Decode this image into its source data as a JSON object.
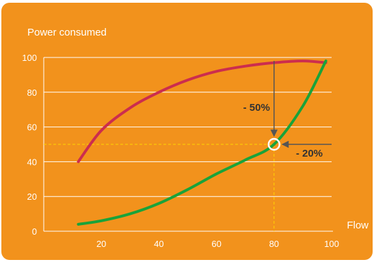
{
  "chart_data": {
    "type": "line",
    "title": "Power consumed",
    "xlabel": "Flow",
    "ylabel": "",
    "xlim": [
      0,
      100
    ],
    "ylim": [
      0,
      100
    ],
    "x_ticks": [
      20,
      40,
      60,
      80,
      100
    ],
    "y_ticks": [
      0,
      20,
      40,
      60,
      80,
      100
    ],
    "grid": "horizontal",
    "series": [
      {
        "color": "#cc2d4e",
        "x": [
          12,
          20,
          30,
          40,
          50,
          60,
          70,
          80,
          90,
          98
        ],
        "y": [
          40,
          58,
          71,
          80,
          87,
          92,
          95,
          97,
          98,
          97
        ]
      },
      {
        "color": "#1aa33a",
        "x": [
          12,
          20,
          30,
          40,
          50,
          60,
          70,
          80,
          90,
          98
        ],
        "y": [
          4,
          6,
          10,
          16,
          24,
          33,
          41,
          50,
          72,
          98
        ]
      }
    ],
    "annotations": [
      {
        "text": "- 50%",
        "x": 80,
        "from_y": 98,
        "to_y": 50
      },
      {
        "text": "- 20%",
        "y": 50,
        "from_x": 100,
        "to_x": 80
      }
    ],
    "highlight_point": {
      "x": 80,
      "y": 50
    },
    "reference_lines": {
      "x": 80,
      "y": 50,
      "style": "dashed",
      "color": "#ffd700"
    }
  },
  "colors": {
    "background": "#f2921c",
    "gridline": "#ffffff",
    "axis_text": "#ffffff",
    "annotation_line": "#555555",
    "annotation_text": "#333333",
    "reference": "#ffd700"
  }
}
